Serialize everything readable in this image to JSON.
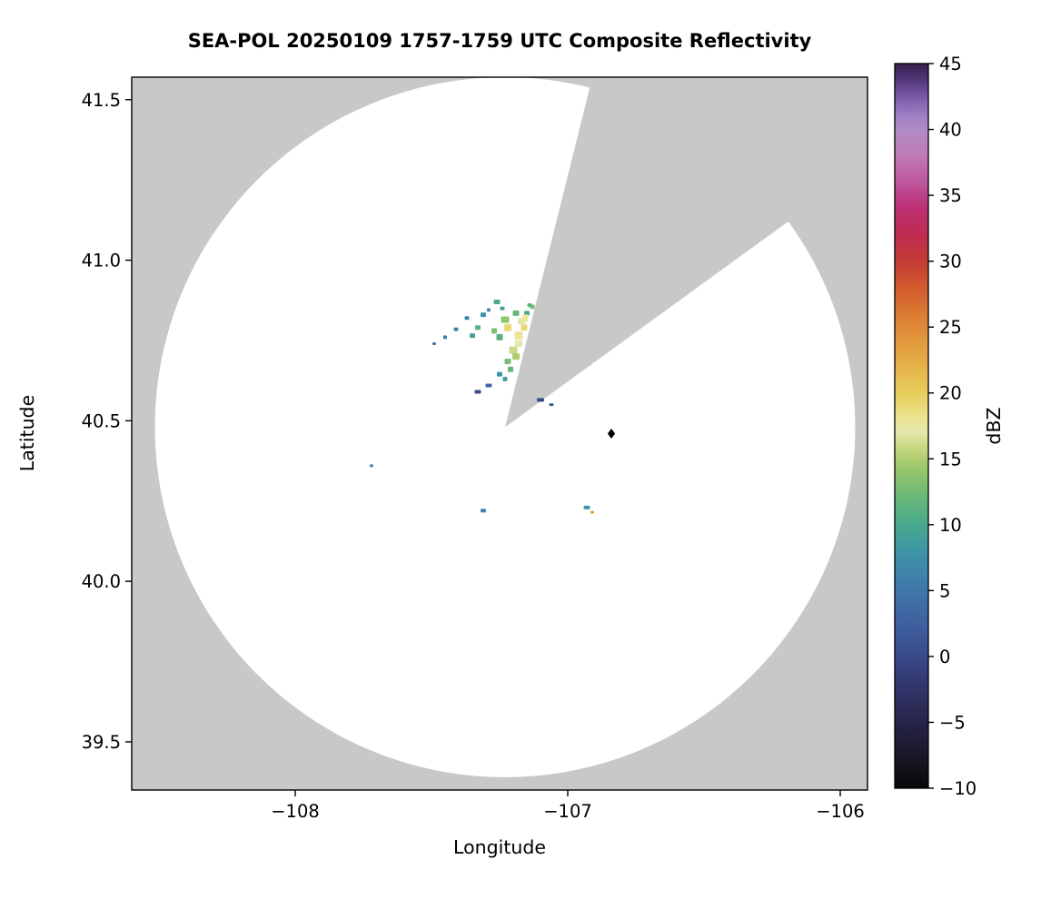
{
  "chart_data": {
    "type": "heatmap",
    "title": "SEA-POL 20250109 1757-1759 UTC Composite Reflectivity",
    "xlabel": "Longitude",
    "ylabel": "Latitude",
    "xlim": [
      -108.6,
      -105.9
    ],
    "ylim": [
      39.35,
      41.57
    ],
    "grid": false,
    "xticks": [
      {
        "value": -108,
        "label": "−108"
      },
      {
        "value": -107,
        "label": "−107"
      },
      {
        "value": -106,
        "label": "−106"
      }
    ],
    "yticks": [
      {
        "value": 39.5,
        "label": "39.5"
      },
      {
        "value": 40.0,
        "label": "40.0"
      },
      {
        "value": 40.5,
        "label": "40.5"
      },
      {
        "value": 41.0,
        "label": "41.0"
      },
      {
        "value": 41.5,
        "label": "41.5"
      }
    ],
    "colors": {
      "scanned_area": "#ffffff",
      "blocked_area": "#c8c8c8",
      "figure_background": "#ffffff",
      "spine": "#000000",
      "marker": "#000000"
    },
    "radar": {
      "center_lon": -107.23,
      "center_lat": 40.48,
      "radius_deg_lat": 1.09,
      "blocked_sector_az_deg": [
        14,
        54
      ]
    },
    "marker": {
      "lon": -106.84,
      "lat": 40.46,
      "shape": "diamond",
      "color": "#000000",
      "size": 5.5
    },
    "colorbar": {
      "label": "dBZ",
      "min": -10,
      "max": 45,
      "ticks": [
        {
          "value": 45,
          "label": "45"
        },
        {
          "value": 40,
          "label": "40"
        },
        {
          "value": 35,
          "label": "35"
        },
        {
          "value": 30,
          "label": "30"
        },
        {
          "value": 25,
          "label": "25"
        },
        {
          "value": 20,
          "label": "20"
        },
        {
          "value": 15,
          "label": "15"
        },
        {
          "value": 10,
          "label": "10"
        },
        {
          "value": 5,
          "label": "5"
        },
        {
          "value": 0,
          "label": "0"
        },
        {
          "value": -5,
          "label": "−5"
        },
        {
          "value": -10,
          "label": "−10"
        }
      ],
      "stops": [
        [
          -10,
          "#080808"
        ],
        [
          -8,
          "#161522"
        ],
        [
          -6,
          "#211f3a"
        ],
        [
          -4,
          "#2b2a55"
        ],
        [
          -2,
          "#333870"
        ],
        [
          0,
          "#394a8a"
        ],
        [
          2,
          "#3d5c9c"
        ],
        [
          4,
          "#3f6ea6"
        ],
        [
          6,
          "#3f80ac"
        ],
        [
          8,
          "#3e95a6"
        ],
        [
          10,
          "#48a98d"
        ],
        [
          12,
          "#68b778"
        ],
        [
          14,
          "#92c46c"
        ],
        [
          15,
          "#aecd70"
        ],
        [
          16,
          "#cbda85"
        ],
        [
          17,
          "#e4e6ab"
        ],
        [
          18,
          "#ece596"
        ],
        [
          19,
          "#e9da75"
        ],
        [
          20,
          "#e7cd5c"
        ],
        [
          22,
          "#e5b249"
        ],
        [
          24,
          "#e1973c"
        ],
        [
          26,
          "#db7b33"
        ],
        [
          28,
          "#d15a2e"
        ],
        [
          30,
          "#c33b35"
        ],
        [
          32,
          "#bf2b50"
        ],
        [
          34,
          "#bd3173"
        ],
        [
          35,
          "#bc4088"
        ],
        [
          36,
          "#bd579d"
        ],
        [
          38,
          "#c07ab6"
        ],
        [
          40,
          "#b18bc5"
        ],
        [
          41,
          "#9d80c4"
        ],
        [
          42,
          "#8566b2"
        ],
        [
          43,
          "#684a96"
        ],
        [
          44,
          "#4e3272"
        ],
        [
          45,
          "#35204d"
        ]
      ]
    },
    "echoes": [
      {
        "lon": -107.26,
        "lat": 40.87,
        "dbz": 10,
        "w": 7,
        "h": 5
      },
      {
        "lon": -107.31,
        "lat": 40.83,
        "dbz": 8,
        "w": 6,
        "h": 5
      },
      {
        "lon": -107.37,
        "lat": 40.82,
        "dbz": 6,
        "w": 5,
        "h": 4
      },
      {
        "lon": -107.23,
        "lat": 40.815,
        "dbz": 14,
        "w": 9,
        "h": 7
      },
      {
        "lon": -107.19,
        "lat": 40.835,
        "dbz": 12,
        "w": 7,
        "h": 6
      },
      {
        "lon": -107.15,
        "lat": 40.835,
        "dbz": 10,
        "w": 6,
        "h": 5
      },
      {
        "lon": -107.13,
        "lat": 40.855,
        "dbz": 13,
        "w": 5,
        "h": 5
      },
      {
        "lon": -107.17,
        "lat": 40.81,
        "dbz": 17,
        "w": 8,
        "h": 7
      },
      {
        "lon": -107.22,
        "lat": 40.79,
        "dbz": 19,
        "w": 8,
        "h": 8
      },
      {
        "lon": -107.18,
        "lat": 40.765,
        "dbz": 18,
        "w": 9,
        "h": 9
      },
      {
        "lon": -107.25,
        "lat": 40.76,
        "dbz": 11,
        "w": 7,
        "h": 7
      },
      {
        "lon": -107.27,
        "lat": 40.78,
        "dbz": 13,
        "w": 6,
        "h": 6
      },
      {
        "lon": -107.2,
        "lat": 40.72,
        "dbz": 16,
        "w": 9,
        "h": 8
      },
      {
        "lon": -107.16,
        "lat": 40.79,
        "dbz": 19,
        "w": 7,
        "h": 7
      },
      {
        "lon": -107.18,
        "lat": 40.74,
        "dbz": 17,
        "w": 8,
        "h": 7
      },
      {
        "lon": -107.19,
        "lat": 40.7,
        "dbz": 15,
        "w": 8,
        "h": 7
      },
      {
        "lon": -107.22,
        "lat": 40.685,
        "dbz": 13,
        "w": 7,
        "h": 6
      },
      {
        "lon": -107.21,
        "lat": 40.66,
        "dbz": 12,
        "w": 6,
        "h": 6
      },
      {
        "lon": -107.25,
        "lat": 40.645,
        "dbz": 8,
        "w": 6,
        "h": 5
      },
      {
        "lon": -107.23,
        "lat": 40.63,
        "dbz": 9,
        "w": 5,
        "h": 5
      },
      {
        "lon": -107.29,
        "lat": 40.61,
        "dbz": 3,
        "w": 7,
        "h": 4
      },
      {
        "lon": -107.33,
        "lat": 40.59,
        "dbz": 0,
        "w": 7,
        "h": 4
      },
      {
        "lon": -107.35,
        "lat": 40.765,
        "dbz": 9,
        "w": 6,
        "h": 5
      },
      {
        "lon": -107.33,
        "lat": 40.79,
        "dbz": 11,
        "w": 6,
        "h": 5
      },
      {
        "lon": -107.41,
        "lat": 40.785,
        "dbz": 6,
        "w": 5,
        "h": 4
      },
      {
        "lon": -107.45,
        "lat": 40.76,
        "dbz": 5,
        "w": 4,
        "h": 4
      },
      {
        "lon": -107.49,
        "lat": 40.74,
        "dbz": 4,
        "w": 4,
        "h": 3
      },
      {
        "lon": -107.155,
        "lat": 40.82,
        "dbz": 18,
        "w": 6,
        "h": 8
      },
      {
        "lon": -107.14,
        "lat": 40.86,
        "dbz": 11,
        "w": 5,
        "h": 4
      },
      {
        "lon": -107.24,
        "lat": 40.85,
        "dbz": 9,
        "w": 5,
        "h": 4
      },
      {
        "lon": -107.29,
        "lat": 40.845,
        "dbz": 7,
        "w": 4,
        "h": 4
      },
      {
        "lon": -107.1,
        "lat": 40.565,
        "dbz": 0,
        "w": 8,
        "h": 4
      },
      {
        "lon": -107.06,
        "lat": 40.55,
        "dbz": 2,
        "w": 5,
        "h": 3
      },
      {
        "lon": -107.72,
        "lat": 40.36,
        "dbz": 6,
        "w": 4,
        "h": 3
      },
      {
        "lon": -107.31,
        "lat": 40.22,
        "dbz": 6,
        "w": 6,
        "h": 4
      },
      {
        "lon": -106.93,
        "lat": 40.23,
        "dbz": 8,
        "w": 7,
        "h": 4
      },
      {
        "lon": -106.91,
        "lat": 40.215,
        "dbz": 24,
        "w": 4,
        "h": 3
      }
    ]
  }
}
